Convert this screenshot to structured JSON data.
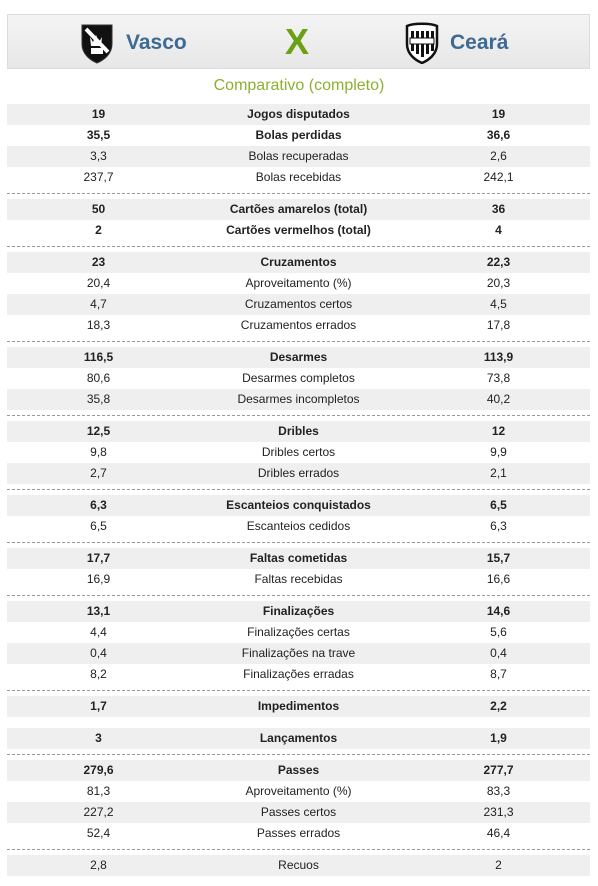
{
  "header": {
    "home_team": "Vasco",
    "away_team": "Ceará",
    "vs": "X",
    "home_shield_icon": "vasco-shield-icon",
    "away_shield_icon": "ceara-shield-icon",
    "colors": {
      "team_name": "#3d6a93",
      "vs": "#6aa114",
      "subtitle": "#8cb12f"
    }
  },
  "subtitle": "Comparativo (completo)",
  "groups": [
    {
      "rows": [
        {
          "label": "Jogos disputados",
          "home": "19",
          "away": "19",
          "bold": true
        },
        {
          "label": "Bolas perdidas",
          "home": "35,5",
          "away": "36,6",
          "bold": true
        },
        {
          "label": "Bolas recuperadas",
          "home": "3,3",
          "away": "2,6",
          "bold": false
        },
        {
          "label": "Bolas recebidas",
          "home": "237,7",
          "away": "242,1",
          "bold": false
        }
      ]
    },
    {
      "rows": [
        {
          "label": "Cartões amarelos (total)",
          "home": "50",
          "away": "36",
          "bold": true
        },
        {
          "label": "Cartões vermelhos (total)",
          "home": "2",
          "away": "4",
          "bold": true
        }
      ]
    },
    {
      "rows": [
        {
          "label": "Cruzamentos",
          "home": "23",
          "away": "22,3",
          "bold": true
        },
        {
          "label": "Aproveitamento (%)",
          "home": "20,4",
          "away": "20,3",
          "bold": false
        },
        {
          "label": "Cruzamentos certos",
          "home": "4,7",
          "away": "4,5",
          "bold": false
        },
        {
          "label": "Cruzamentos errados",
          "home": "18,3",
          "away": "17,8",
          "bold": false
        }
      ]
    },
    {
      "rows": [
        {
          "label": "Desarmes",
          "home": "116,5",
          "away": "113,9",
          "bold": true
        },
        {
          "label": "Desarmes completos",
          "home": "80,6",
          "away": "73,8",
          "bold": false
        },
        {
          "label": "Desarmes incompletos",
          "home": "35,8",
          "away": "40,2",
          "bold": false
        }
      ]
    },
    {
      "rows": [
        {
          "label": "Dribles",
          "home": "12,5",
          "away": "12",
          "bold": true
        },
        {
          "label": "Dribles certos",
          "home": "9,8",
          "away": "9,9",
          "bold": false
        },
        {
          "label": "Dribles errados",
          "home": "2,7",
          "away": "2,1",
          "bold": false
        }
      ]
    },
    {
      "rows": [
        {
          "label": "Escanteios conquistados",
          "home": "6,3",
          "away": "6,5",
          "bold": true
        },
        {
          "label": "Escanteios cedidos",
          "home": "6,5",
          "away": "6,3",
          "bold": false
        }
      ]
    },
    {
      "rows": [
        {
          "label": "Faltas cometidas",
          "home": "17,7",
          "away": "15,7",
          "bold": true
        },
        {
          "label": "Faltas recebidas",
          "home": "16,9",
          "away": "16,6",
          "bold": false
        }
      ]
    },
    {
      "rows": [
        {
          "label": "Finalizações",
          "home": "13,1",
          "away": "14,6",
          "bold": true
        },
        {
          "label": "Finalizações certas",
          "home": "4,4",
          "away": "5,6",
          "bold": false
        },
        {
          "label": "Finalizações na trave",
          "home": "0,4",
          "away": "0,4",
          "bold": false
        },
        {
          "label": "Finalizações erradas",
          "home": "8,2",
          "away": "8,7",
          "bold": false
        }
      ]
    },
    {
      "rows": [
        {
          "label": "Impedimentos",
          "home": "1,7",
          "away": "2,2",
          "bold": true
        }
      ]
    },
    {
      "rows": [
        {
          "label": "Lançamentos",
          "home": "3",
          "away": "1,9",
          "bold": true
        }
      ]
    },
    {
      "rows": [
        {
          "label": "Passes",
          "home": "279,6",
          "away": "277,7",
          "bold": true
        },
        {
          "label": "Aproveitamento (%)",
          "home": "81,3",
          "away": "83,3",
          "bold": false
        },
        {
          "label": "Passes certos",
          "home": "227,2",
          "away": "231,3",
          "bold": false
        },
        {
          "label": "Passes errados",
          "home": "52,4",
          "away": "46,4",
          "bold": false
        }
      ]
    },
    {
      "rows": [
        {
          "label": "Recuos",
          "home": "2,8",
          "away": "2",
          "bold": false
        }
      ]
    }
  ]
}
